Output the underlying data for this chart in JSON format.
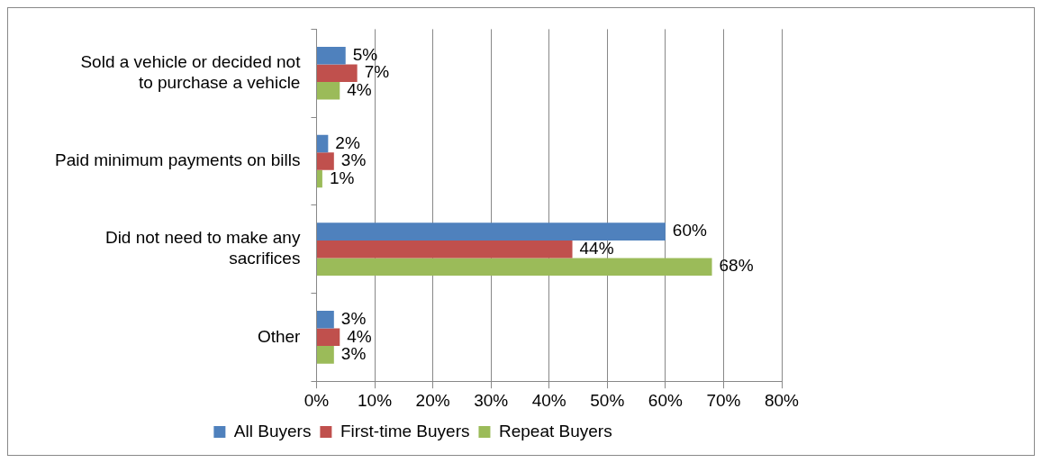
{
  "chart_data": {
    "type": "bar",
    "orientation": "horizontal",
    "categories": [
      "Sold a vehicle or decided not to purchase a vehicle",
      "Paid minimum payments on bills",
      "Did not need to make any sacrifices",
      "Other"
    ],
    "series": [
      {
        "name": "All Buyers",
        "color": "#4f81bd",
        "values": [
          5,
          2,
          60,
          3
        ],
        "value_labels": [
          "5%",
          "2%",
          "60%",
          "3%"
        ]
      },
      {
        "name": "First-time Buyers",
        "color": "#c0504d",
        "values": [
          7,
          3,
          44,
          4
        ],
        "value_labels": [
          "7%",
          "3%",
          "44%",
          "4%"
        ]
      },
      {
        "name": "Repeat Buyers",
        "color": "#9bbb59",
        "values": [
          4,
          1,
          68,
          3
        ],
        "value_labels": [
          "4%",
          "1%",
          "68%",
          "3%"
        ]
      }
    ],
    "xlim": [
      0,
      80
    ],
    "xticks": [
      {
        "value": 0,
        "label": "0%"
      },
      {
        "value": 10,
        "label": "10%"
      },
      {
        "value": 20,
        "label": "20%"
      },
      {
        "value": 30,
        "label": "30%"
      },
      {
        "value": 40,
        "label": "40%"
      },
      {
        "value": 50,
        "label": "50%"
      },
      {
        "value": 60,
        "label": "60%"
      },
      {
        "value": 70,
        "label": "70%"
      },
      {
        "value": 80,
        "label": "80%"
      }
    ],
    "grid": "x",
    "legend": "bottom"
  }
}
